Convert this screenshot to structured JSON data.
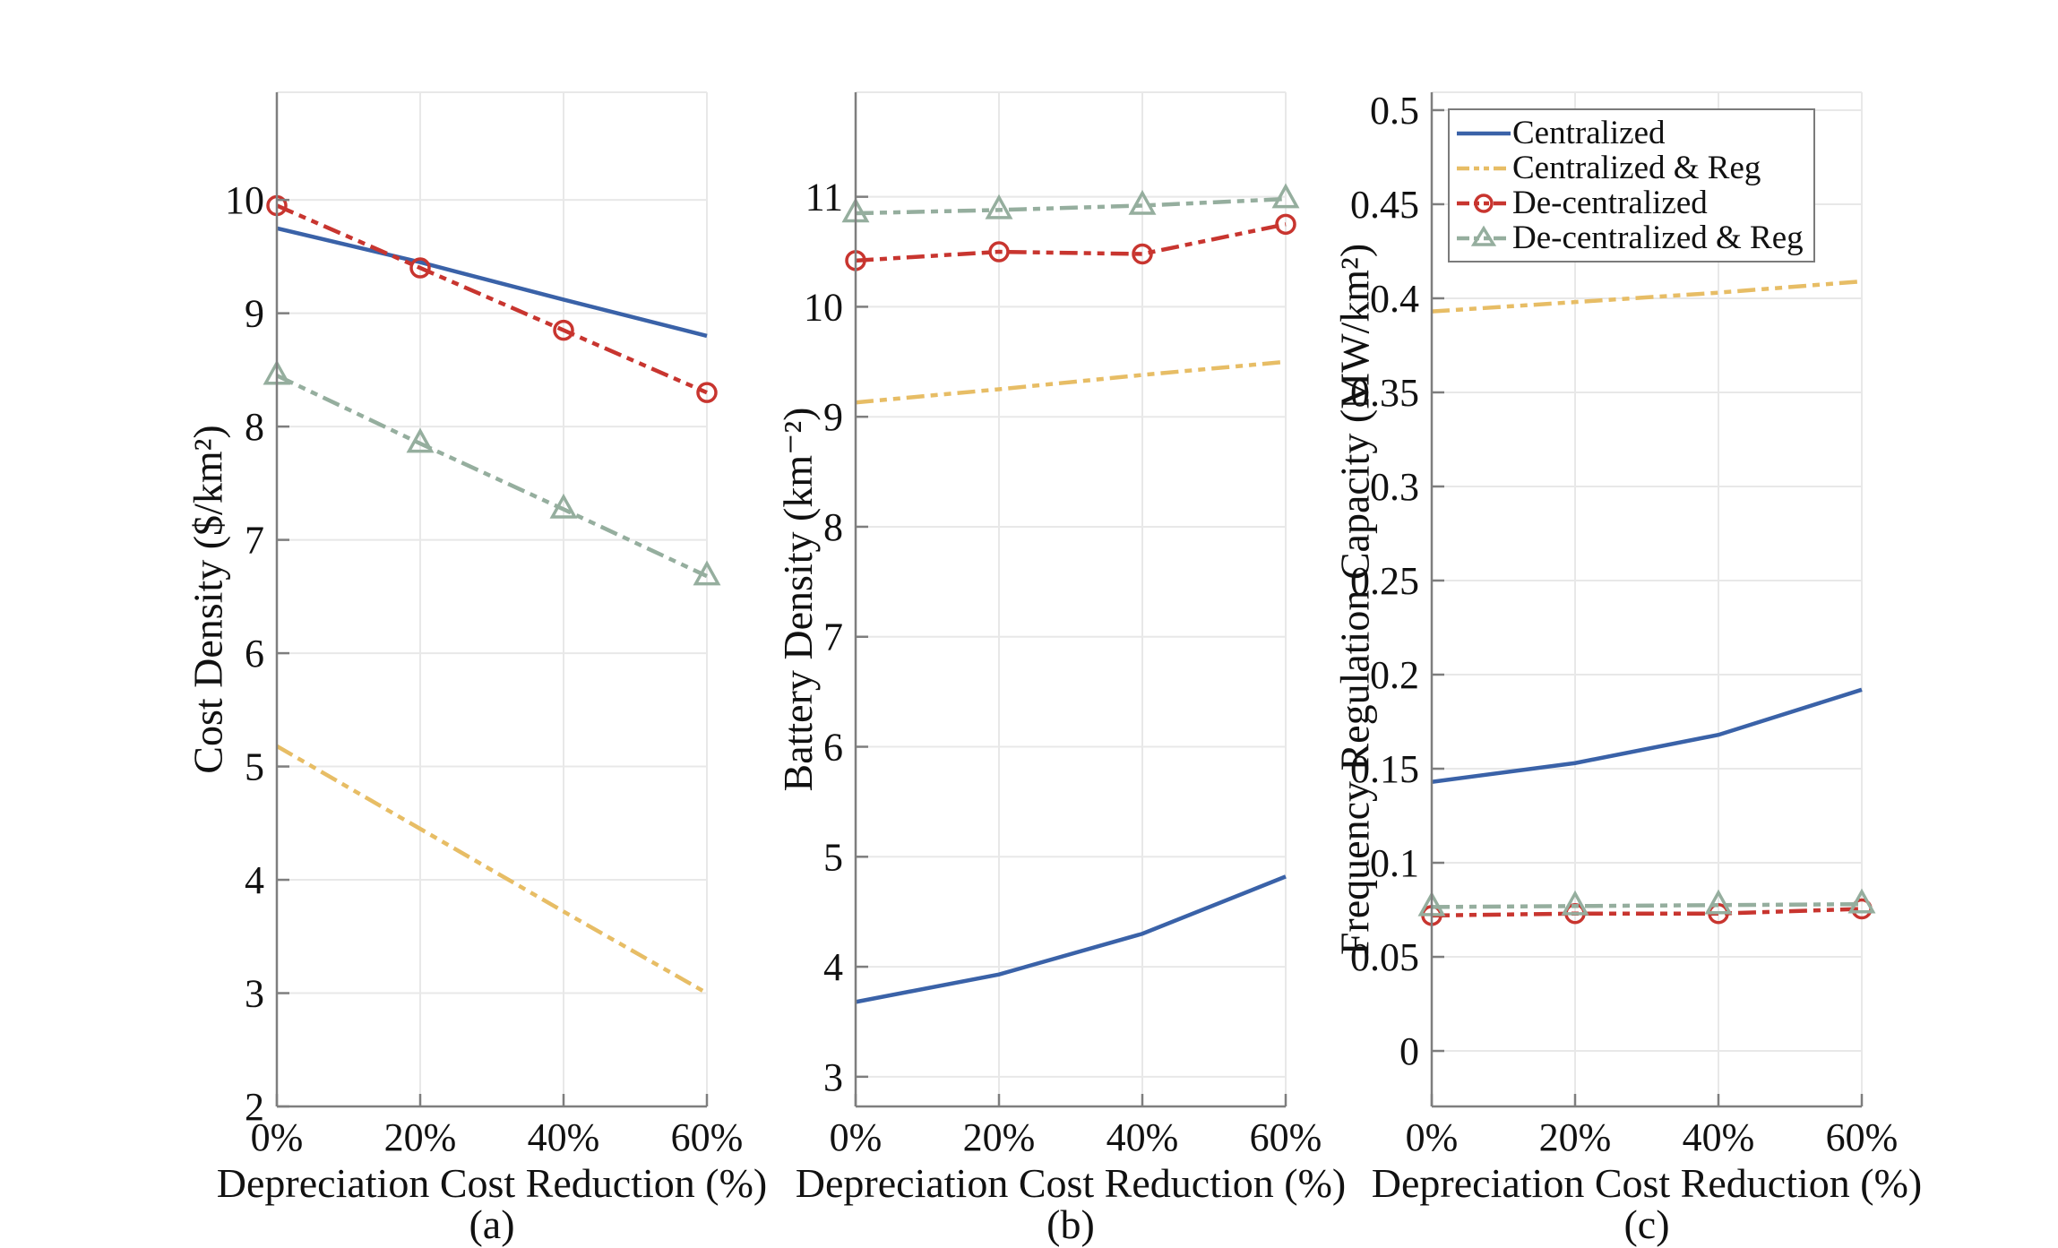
{
  "figure": {
    "legend": [
      {
        "label": "Centralized",
        "color": "#3A62A8",
        "style": "solid",
        "marker": "none"
      },
      {
        "label": "Centralized & Reg",
        "color": "#E7BD65",
        "style": "dashdot",
        "marker": "none"
      },
      {
        "label": "De-centralized",
        "color": "#C8352F",
        "style": "dashdot",
        "marker": "circle"
      },
      {
        "label": "De-centralized & Reg",
        "color": "#95AE9E",
        "style": "dashdot",
        "marker": "triangle"
      }
    ],
    "legend_position": "top-left of panel c",
    "colors": {
      "grid": "#E8E8E8",
      "spine": "#7E7E7E",
      "text": "#111111",
      "background": "#FFFFFF"
    }
  },
  "chart_data": [
    {
      "id": "a",
      "type": "line",
      "panel_label": "(a)",
      "xlabel": "Depreciation Cost Reduction (%)",
      "ylabel": "Cost Density ($/km²)",
      "x": [
        0,
        20,
        40,
        60
      ],
      "x_tick_labels": [
        "0%",
        "20%",
        "40%",
        "60%"
      ],
      "ylim": [
        2,
        10.95
      ],
      "yticks": [
        2,
        3,
        4,
        5,
        6,
        7,
        8,
        9,
        10
      ],
      "ytick_labels": [
        "2",
        "3",
        "4",
        "5",
        "6",
        "7",
        "8",
        "9",
        "10"
      ],
      "grid": true,
      "series": [
        {
          "name": "Centralized",
          "values": [
            9.75,
            9.45,
            9.12,
            8.8
          ]
        },
        {
          "name": "Centralized & Reg",
          "values": [
            5.18,
            4.45,
            3.72,
            3.0
          ]
        },
        {
          "name": "De-centralized",
          "values": [
            9.95,
            9.4,
            8.85,
            8.3
          ]
        },
        {
          "name": "De-centralized & Reg",
          "values": [
            8.45,
            7.85,
            7.27,
            6.68
          ]
        }
      ]
    },
    {
      "id": "b",
      "type": "line",
      "panel_label": "(b)",
      "xlabel": "Depreciation Cost Reduction (%)",
      "ylabel": "Battery Density (km⁻²)",
      "x": [
        0,
        20,
        40,
        60
      ],
      "x_tick_labels": [
        "0%",
        "20%",
        "40%",
        "60%"
      ],
      "ylim": [
        2.73,
        11.95
      ],
      "yticks": [
        3,
        4,
        5,
        6,
        7,
        8,
        9,
        10,
        11
      ],
      "ytick_labels": [
        "3",
        "4",
        "5",
        "6",
        "7",
        "8",
        "9",
        "10",
        "11"
      ],
      "grid": true,
      "series": [
        {
          "name": "Centralized",
          "values": [
            3.68,
            3.93,
            4.3,
            4.82
          ]
        },
        {
          "name": "Centralized & Reg",
          "values": [
            9.13,
            9.25,
            9.38,
            9.5
          ]
        },
        {
          "name": "De-centralized",
          "values": [
            10.42,
            10.5,
            10.48,
            10.75
          ]
        },
        {
          "name": "De-centralized & Reg",
          "values": [
            10.85,
            10.88,
            10.92,
            10.98
          ]
        }
      ]
    },
    {
      "id": "c",
      "type": "line",
      "panel_label": "(c)",
      "xlabel": "Depreciation Cost Reduction (%)",
      "ylabel": "Frequency Regulation Capacity (MW/km²)",
      "x": [
        0,
        20,
        40,
        60
      ],
      "x_tick_labels": [
        "0%",
        "20%",
        "40%",
        "60%"
      ],
      "ylim": [
        -0.0295,
        0.5095
      ],
      "yticks": [
        0,
        0.05,
        0.1,
        0.15,
        0.2,
        0.25,
        0.3,
        0.35,
        0.4,
        0.45,
        0.5
      ],
      "ytick_labels": [
        "0",
        "0.05",
        "0.1",
        "0.15",
        "0.2",
        "0.25",
        "0.3",
        "0.35",
        "0.4",
        "0.45",
        "0.5"
      ],
      "grid": true,
      "series": [
        {
          "name": "Centralized",
          "values": [
            0.143,
            0.153,
            0.168,
            0.192
          ]
        },
        {
          "name": "Centralized & Reg",
          "values": [
            0.393,
            0.398,
            0.403,
            0.409
          ]
        },
        {
          "name": "De-centralized",
          "values": [
            0.072,
            0.073,
            0.073,
            0.0755
          ]
        },
        {
          "name": "De-centralized & Reg",
          "values": [
            0.0765,
            0.077,
            0.0775,
            0.078
          ]
        }
      ]
    }
  ]
}
